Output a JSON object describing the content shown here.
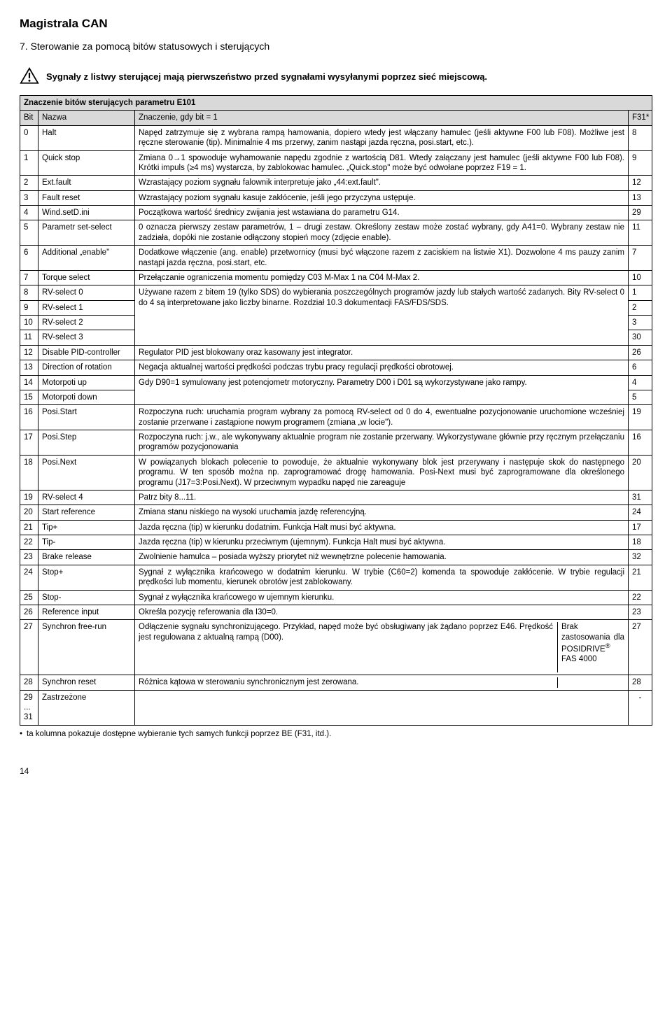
{
  "header": {
    "title": "Magistrala CAN",
    "section": "7. Sterowanie za pomocą bitów statusowych i sterujących",
    "warning": "Sygnały z listwy sterującej mają pierwszeństwo przed sygnałami wysyłanymi poprzez sieć miejscową."
  },
  "table": {
    "title": "Znaczenie bitów sterujących parametru E101",
    "columns": {
      "bit": "Bit",
      "name": "Nazwa",
      "meaning": "Znaczenie, gdy bit = 1",
      "f31": "F31*"
    },
    "rows": [
      {
        "bit": "0",
        "name": "Halt",
        "text": "Napęd zatrzymuje się z wybrana rampą hamowania, dopiero wtedy jest włączany hamulec (jeśli aktywne F00 lub F08). Możliwe jest ręczne sterowanie (tip). Minimalnie 4 ms przerwy, zanim nastąpi jazda ręczna, posi.start, etc.).",
        "f31": "8"
      },
      {
        "bit": "1",
        "name": "Quick stop",
        "text": "Zmiana 0→1 spowoduje wyhamowanie napędu zgodnie z wartością D81. Wtedy załączany jest hamulec (jeśli aktywne F00 lub F08). Krótki impuls (≥4 ms) wystarcza, by zablokowac hamulec. „Quick.stop\" może być odwołane poprzez F19 = 1.",
        "f31": "9"
      },
      {
        "bit": "2",
        "name": "Ext.fault",
        "text": "Wzrastający poziom sygnału falownik interpretuje jako „44:ext.fault\".",
        "f31": "12"
      },
      {
        "bit": "3",
        "name": "Fault reset",
        "text": "Wzrastający poziom sygnału kasuje zakłócenie, jeśli jego przyczyna ustępuje.",
        "f31": "13"
      },
      {
        "bit": "4",
        "name": "Wind.setD.ini",
        "text": "Początkowa wartość średnicy zwijania jest wstawiana do parametru G14.",
        "f31": "29"
      },
      {
        "bit": "5",
        "name": "Parametr set-select",
        "text": "0 oznacza pierwszy zestaw parametrów, 1 – drugi zestaw. Określony zestaw może zostać wybrany, gdy A41=0. Wybrany zestaw nie zadziała, dopóki nie zostanie odłączony stopień mocy (zdjęcie enable).",
        "f31": "11"
      },
      {
        "bit": "6",
        "name": "Additional „enable\"",
        "text": "Dodatkowe włączenie (ang. enable) przetwornicy (musi być włączone razem z zaciskiem na listwie X1). Dozwolone 4 ms pauzy zanim nastąpi jazda ręczna, posi.start, etc.",
        "f31": "7"
      },
      {
        "bit": "7",
        "name": "Torque select",
        "text": "Przełączanie ograniczenia momentu pomiędzy C03 M-Max 1 na C04 M-Max 2.",
        "f31": "10"
      },
      {
        "bit": "8",
        "name": "RV-select 0",
        "text": "",
        "f31": "1"
      },
      {
        "bit": "9",
        "name": "RV-select 1",
        "text": "Używane razem z bitem 19 (tylko SDS) do wybierania poszczególnych programów jazdy lub stałych wartość zadanych. Bity RV-select 0 do 4 są interpretowane jako liczby binarne. Rozdział 10.3 dokumentacji FAS/FDS/SDS.",
        "f31": "2"
      },
      {
        "bit": "10",
        "name": "RV-select 2",
        "text": "",
        "f31": "3"
      },
      {
        "bit": "11",
        "name": "RV-select 3",
        "text": "",
        "f31": "30"
      },
      {
        "bit": "12",
        "name": "Disable PID-controller",
        "text": "Regulator PID jest blokowany oraz kasowany jest integrator.",
        "f31": "26"
      },
      {
        "bit": "13",
        "name": "Direction of rotation",
        "text": "Negacja aktualnej wartości prędkości podczas trybu pracy regulacji prędkości obrotowej.",
        "f31": "6"
      },
      {
        "bit": "14",
        "name": "Motorpoti up",
        "text": "Gdy D90=1 symulowany jest potencjometr motoryczny. Parametry D00 i D01 są wykorzystywane jako rampy.",
        "f31": "4"
      },
      {
        "bit": "15",
        "name": "Motorpoti down",
        "text": "",
        "f31": "5"
      },
      {
        "bit": "16",
        "name": "Posi.Start",
        "text": "Rozpoczyna ruch: uruchamia program wybrany za pomocą RV-select od 0 do 4, ewentualne pozycjonowanie uruchomione wcześniej zostanie przerwane i zastąpione nowym programem (zmiana „w locie\").",
        "f31": "19"
      },
      {
        "bit": "17",
        "name": "Posi.Step",
        "text": "Rozpoczyna ruch: j.w., ale wykonywany aktualnie program nie zostanie przerwany. Wykorzystywane głównie przy ręcznym przełączaniu programów pozycjonowania",
        "f31": "16"
      },
      {
        "bit": "18",
        "name": "Posi.Next",
        "text": "W powiązanych blokach polecenie to powoduje, że aktualnie wykonywany blok jest przerywany i następuje skok do następnego programu. W ten sposób można np. zaprogramować drogę hamowania. Posi-Next musi być zaprogramowane dla określonego programu (J17=3:Posi.Next). W przeciwnym wypadku napęd nie zareaguje",
        "f31": "20"
      },
      {
        "bit": "19",
        "name": "RV-select 4",
        "text": "Patrz bity 8...11.",
        "f31": "31"
      },
      {
        "bit": "20",
        "name": "Start reference",
        "text": "Zmiana stanu niskiego na wysoki uruchamia jazdę referencyjną.",
        "f31": "24"
      },
      {
        "bit": "21",
        "name": "Tip+",
        "text": "Jazda ręczna (tip) w kierunku dodatnim. Funkcja Halt musi być aktywna.",
        "f31": "17"
      },
      {
        "bit": "22",
        "name": "Tip-",
        "text": "Jazda ręczna (tip) w kierunku przeciwnym (ujemnym). Funkcja Halt musi być aktywna.",
        "f31": "18"
      },
      {
        "bit": "23",
        "name": "Brake release",
        "text": "Zwolnienie hamulca – posiada wyższy priorytet niż wewnętrzne polecenie hamowania.",
        "f31": "32"
      },
      {
        "bit": "24",
        "name": "Stop+",
        "text": "Sygnał z wyłącznika krańcowego w dodatnim kierunku. W trybie (C60=2) komenda ta spowoduje zakłócenie. W trybie regulacji prędkości lub momentu, kierunek obrotów jest zablokowany.",
        "f31": "21"
      },
      {
        "bit": "25",
        "name": "Stop-",
        "text": "Sygnał z wyłącznika krańcowego w ujemnym kierunku.",
        "f31": "22"
      },
      {
        "bit": "26",
        "name": "Reference input",
        "text": "Określa pozycję referowania dla I30=0.",
        "f31": "23"
      },
      {
        "bit": "27",
        "name": "Synchron free-run",
        "text": "Odłączenie sygnału synchronizującego. Przykład, napęd może być obsługiwany jak żądano poprzez E46. Prędkość jest regulowana z aktualną rampą (D00).",
        "f31": "27",
        "side": "Brak zastosowania dla POSIDRIVE® FAS 4000"
      },
      {
        "bit": "28",
        "name": "Synchron reset",
        "text": "Różnica kątowa w sterowaniu synchronicznym jest zerowana.",
        "f31": "28"
      },
      {
        "bit": "29\n...\n31",
        "name": "Zastrzeżone",
        "text": "",
        "f31": "-"
      }
    ]
  },
  "footnote": "ta kolumna pokazuje dostępne wybieranie tych samych funkcji poprzez BE (F31, itd.).",
  "pagenum": "14"
}
